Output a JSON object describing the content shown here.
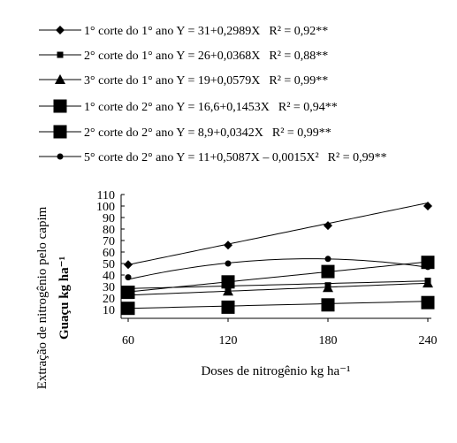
{
  "chart_data": {
    "type": "line",
    "xlabel": "Doses de nitrogênio kg ha⁻¹",
    "ylabel_line1": "Extração de nitrogênio pelo capim",
    "ylabel_line2": "Guaçu kg ha⁻¹",
    "x": [
      60,
      120,
      180,
      240
    ],
    "xlim": [
      60,
      240
    ],
    "ylim": [
      0,
      110
    ],
    "yticks": [
      10,
      20,
      30,
      40,
      50,
      60,
      70,
      80,
      90,
      100,
      110
    ],
    "grid": false,
    "legend_position": "top",
    "series": [
      {
        "name": "1° corte do 1° ano",
        "equation": "Y = 31+0,2989X",
        "r2": "R² = 0,92**",
        "marker": "diamond",
        "values": [
          49,
          66,
          83,
          100
        ],
        "fit": {
          "a": 31,
          "b": 0.2989,
          "c": 0
        }
      },
      {
        "name": "2° corte do 1° ano",
        "equation": "Y = 26+0,0368X",
        "r2": "R² = 0,88**",
        "marker": "small-square",
        "values": [
          24,
          29,
          31,
          35
        ],
        "fit": {
          "a": 26,
          "b": 0.0368,
          "c": 0
        }
      },
      {
        "name": "3° corte do 1° ano",
        "equation": "Y = 19+0,0579X",
        "r2": "R² = 0,99**",
        "marker": "triangle",
        "values": [
          23,
          26,
          29,
          33
        ],
        "fit": {
          "a": 19,
          "b": 0.0579,
          "c": 0
        }
      },
      {
        "name": "1° corte do 2° ano",
        "equation": "Y = 16,6+0,1453X",
        "r2": "R² = 0,94**",
        "marker": "large-square",
        "values": [
          25,
          34,
          43,
          51
        ],
        "fit": {
          "a": 16.6,
          "b": 0.1453,
          "c": 0
        }
      },
      {
        "name": "2° corte do 2° ano",
        "equation": "Y = 8,9+0,0342X",
        "r2": "R² = 0,99**",
        "marker": "large-square",
        "values": [
          11,
          12,
          14,
          16
        ],
        "fit": {
          "a": 8.9,
          "b": 0.0342,
          "c": 0
        }
      },
      {
        "name": "5° corte do 2° ano",
        "equation": "Y = 11+0,5087X – 0,0015X²",
        "r2": "R² = 0,99**",
        "marker": "circle",
        "values": [
          38,
          50,
          54,
          47
        ],
        "fit": {
          "a": 11,
          "b": 0.5087,
          "c": -0.0015
        }
      }
    ]
  }
}
